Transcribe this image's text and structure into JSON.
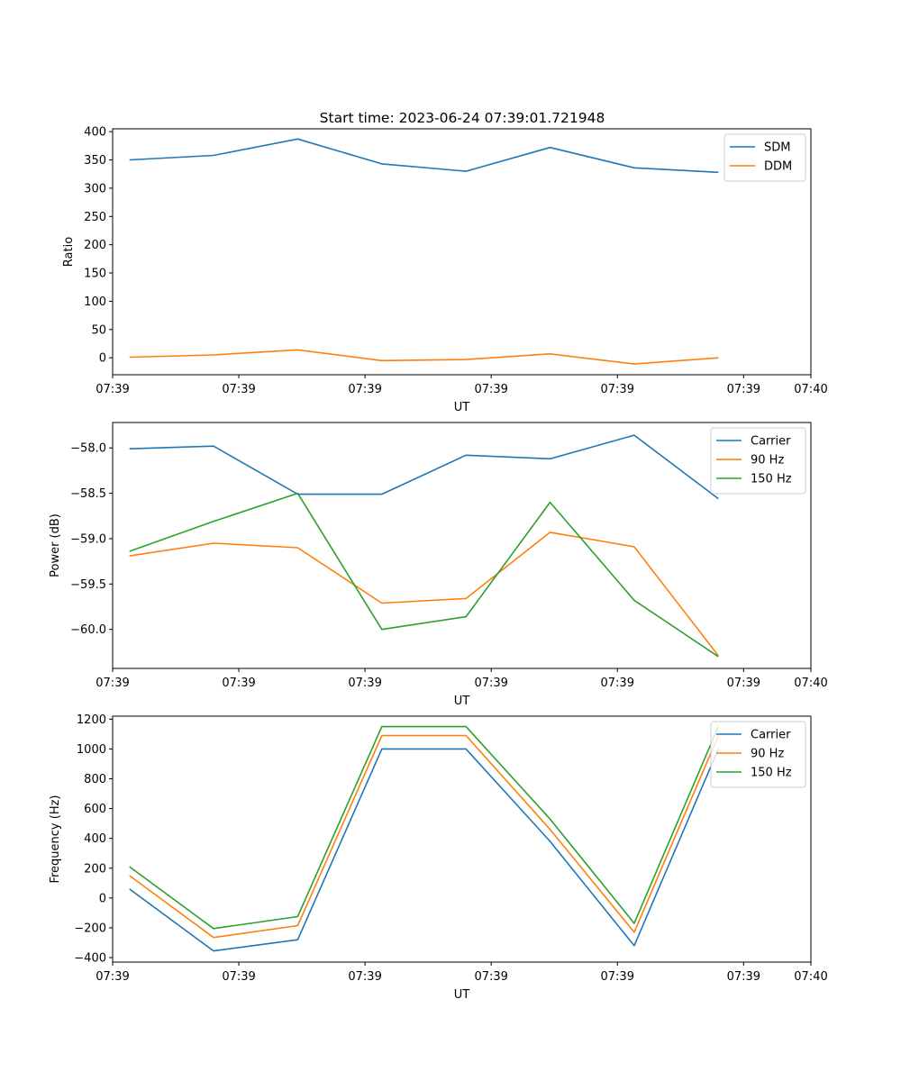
{
  "figure": {
    "title": "Start time: 2023-06-24 07:39:01.721948"
  },
  "chart_data": [
    {
      "type": "line",
      "title": "Start time: 2023-06-24 07:39:01.721948",
      "xlabel": "UT",
      "ylabel": "Ratio",
      "x": [
        1,
        2,
        3,
        4,
        5,
        6,
        7,
        8
      ],
      "xlim": [
        0.8,
        9.1
      ],
      "xticks": [
        0.8,
        2.3,
        3.8,
        5.3,
        6.8,
        8.3,
        9.1
      ],
      "xtick_labels": [
        "07:39",
        "07:39",
        "07:39",
        "07:39",
        "07:39",
        "07:39",
        "07:40"
      ],
      "ylim": [
        -30,
        405
      ],
      "yticks": [
        0,
        50,
        100,
        150,
        200,
        250,
        300,
        350,
        400
      ],
      "yticks_labels": [
        "0",
        "50",
        "100",
        "150",
        "200",
        "250",
        "300",
        "350",
        "400"
      ],
      "legend": "upper right",
      "series": [
        {
          "name": "SDM",
          "color": "#1f77b4",
          "values": [
            350,
            358,
            387,
            343,
            330,
            372,
            336,
            328
          ]
        },
        {
          "name": "DDM",
          "color": "#ff7f0e",
          "values": [
            1,
            5,
            14,
            -5,
            -3,
            7,
            -11,
            0
          ]
        }
      ]
    },
    {
      "type": "line",
      "xlabel": "UT",
      "ylabel": "Power (dB)",
      "x": [
        1,
        2,
        3,
        4,
        5,
        6,
        7,
        8
      ],
      "xlim": [
        0.8,
        9.1
      ],
      "xticks": [
        0.8,
        2.3,
        3.8,
        5.3,
        6.8,
        8.3,
        9.1
      ],
      "xtick_labels": [
        "07:39",
        "07:39",
        "07:39",
        "07:39",
        "07:39",
        "07:39",
        "07:40"
      ],
      "ylim": [
        -60.43,
        -57.72
      ],
      "yticks": [
        -60.0,
        -59.5,
        -59.0,
        -58.5,
        -58.0
      ],
      "yticks_labels": [
        "−60.0",
        "−59.5",
        "−59.0",
        "−58.5",
        "−58.0"
      ],
      "legend": "upper right",
      "series": [
        {
          "name": "Carrier",
          "color": "#1f77b4",
          "values": [
            -58.01,
            -57.98,
            -58.51,
            -58.51,
            -58.08,
            -58.12,
            -57.86,
            -58.56
          ]
        },
        {
          "name": "90 Hz",
          "color": "#ff7f0e",
          "values": [
            -59.19,
            -59.05,
            -59.1,
            -59.71,
            -59.66,
            -58.93,
            -59.09,
            -60.29
          ]
        },
        {
          "name": "150 Hz",
          "color": "#2ca02c",
          "values": [
            -59.14,
            -58.81,
            -58.5,
            -60.0,
            -59.86,
            -58.6,
            -59.68,
            -60.3
          ]
        }
      ]
    },
    {
      "type": "line",
      "xlabel": "UT",
      "ylabel": "Frequency (Hz)",
      "x": [
        1,
        2,
        3,
        4,
        5,
        6,
        7,
        8
      ],
      "xlim": [
        0.8,
        9.1
      ],
      "xticks": [
        0.8,
        2.3,
        3.8,
        5.3,
        6.8,
        8.3,
        9.1
      ],
      "xtick_labels": [
        "07:39",
        "07:39",
        "07:39",
        "07:39",
        "07:39",
        "07:39",
        "07:40"
      ],
      "ylim": [
        -430,
        1220
      ],
      "yticks": [
        -400,
        -200,
        0,
        200,
        400,
        600,
        800,
        1000,
        1200
      ],
      "yticks_labels": [
        "−400",
        "−200",
        "0",
        "200",
        "400",
        "600",
        "800",
        "1000",
        "1200"
      ],
      "legend": "upper right",
      "series": [
        {
          "name": "Carrier",
          "color": "#1f77b4",
          "values": [
            60,
            -355,
            -280,
            1000,
            1000,
            380,
            -320,
            1000
          ]
        },
        {
          "name": "90 Hz",
          "color": "#ff7f0e",
          "values": [
            150,
            -265,
            -185,
            1090,
            1090,
            460,
            -230,
            1090
          ]
        },
        {
          "name": "150 Hz",
          "color": "#2ca02c",
          "values": [
            210,
            -205,
            -125,
            1150,
            1150,
            530,
            -170,
            1150
          ]
        }
      ]
    }
  ]
}
